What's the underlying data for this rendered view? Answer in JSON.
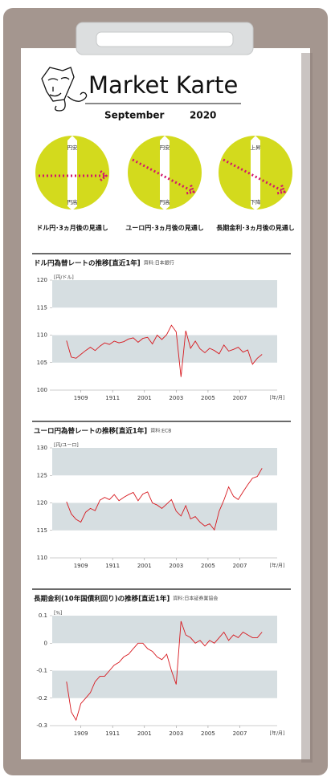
{
  "header": {
    "title": "Market Karte",
    "month": "September",
    "year": "2020"
  },
  "indicators": [
    {
      "top": "円安",
      "bottom": "円高",
      "caption": "ドル円･3ヵ月後の見通し",
      "trend": "flat"
    },
    {
      "top": "円安",
      "bottom": "円高",
      "caption": "ユーロ円･3ヵ月後の見通し",
      "trend": "down"
    },
    {
      "top": "上昇",
      "bottom": "下降",
      "caption": "長期金利･3ヵ月後の見通し",
      "trend": "down"
    }
  ],
  "chart_data": [
    {
      "type": "line",
      "title": "ドル円為替レートの推移[直近1年]",
      "source": "資料:日本銀行",
      "unit": "[円/ドル]",
      "xlabel": "[年/月]",
      "x": [
        -0.9,
        -0.6,
        -0.3,
        0,
        0.3,
        0.6,
        0.9,
        1.2,
        1.5,
        1.8,
        2.1,
        2.4,
        2.7,
        3.0,
        3.3,
        3.6,
        3.9,
        4.2,
        4.5,
        4.8,
        5.1,
        5.4,
        5.7,
        6.0,
        6.3,
        6.6,
        6.9,
        7.2,
        7.5,
        7.8,
        8.1,
        8.4,
        8.7,
        9.0,
        9.3,
        9.6,
        9.9,
        10.2,
        10.5,
        10.8,
        11.1,
        11.4
      ],
      "series": [
        {
          "color": "#d7191f",
          "values": [
            109.0,
            106.0,
            105.8,
            106.5,
            107.2,
            107.8,
            107.2,
            108.0,
            108.6,
            108.3,
            108.9,
            108.6,
            108.8,
            109.3,
            109.5,
            108.7,
            109.4,
            109.6,
            108.4,
            110.0,
            109.2,
            110.1,
            111.8,
            110.6,
            102.4,
            110.8,
            107.6,
            108.9,
            107.5,
            106.8,
            107.6,
            107.2,
            106.6,
            108.2,
            107.1,
            107.4,
            107.8,
            106.9,
            107.3,
            104.7,
            105.8,
            106.5
          ]
        }
      ],
      "xlim": [
        -1.8,
        12.35
      ],
      "xticks": [
        {
          "value": 0,
          "label": "1909"
        },
        {
          "value": 2,
          "label": "1911"
        },
        {
          "value": 4,
          "label": "2001"
        },
        {
          "value": 6,
          "label": "2003"
        },
        {
          "value": 8,
          "label": "2005"
        },
        {
          "value": 10,
          "label": "2007"
        }
      ],
      "ylim": [
        100,
        120
      ],
      "yticks": [
        100,
        105,
        110,
        115,
        120
      ],
      "band_color": "#d6dee1"
    },
    {
      "type": "line",
      "title": "ユーロ円為替レートの推移[直近1年]",
      "source": "資料:ECB",
      "unit": "[円/ユーロ]",
      "xlabel": "[年/月]",
      "x": [
        -0.9,
        -0.6,
        -0.3,
        0,
        0.3,
        0.6,
        0.9,
        1.2,
        1.5,
        1.8,
        2.1,
        2.4,
        2.7,
        3.0,
        3.3,
        3.6,
        3.9,
        4.2,
        4.5,
        4.8,
        5.1,
        5.4,
        5.7,
        6.0,
        6.3,
        6.6,
        6.9,
        7.2,
        7.5,
        7.8,
        8.1,
        8.4,
        8.7,
        9.0,
        9.3,
        9.6,
        9.9,
        10.2,
        10.5,
        10.8,
        11.1,
        11.4
      ],
      "series": [
        {
          "color": "#d7191f",
          "values": [
            120.2,
            118.0,
            117.0,
            116.5,
            118.3,
            119.0,
            118.6,
            120.5,
            121.0,
            120.6,
            121.5,
            120.4,
            121.0,
            121.5,
            121.9,
            120.4,
            121.6,
            122.0,
            120.0,
            119.6,
            119.0,
            119.8,
            120.6,
            118.5,
            117.6,
            119.5,
            117.1,
            117.5,
            116.5,
            115.8,
            116.2,
            115.1,
            118.5,
            120.5,
            122.9,
            121.2,
            120.6,
            122.0,
            123.3,
            124.5,
            124.8,
            126.3
          ]
        }
      ],
      "xlim": [
        -1.8,
        12.35
      ],
      "xticks": [
        {
          "value": 0,
          "label": "1909"
        },
        {
          "value": 2,
          "label": "1911"
        },
        {
          "value": 4,
          "label": "2001"
        },
        {
          "value": 6,
          "label": "2003"
        },
        {
          "value": 8,
          "label": "2005"
        },
        {
          "value": 10,
          "label": "2007"
        }
      ],
      "ylim": [
        110,
        130
      ],
      "yticks": [
        110,
        115,
        120,
        125,
        130
      ],
      "band_color": "#d6dee1"
    },
    {
      "type": "line",
      "title": "長期金利(10年国債利回り)の推移[直近1年]",
      "source": "資料:日本証券業協会",
      "unit": "[%]",
      "xlabel": "[年/月]",
      "x": [
        -0.9,
        -0.6,
        -0.3,
        0,
        0.3,
        0.6,
        0.9,
        1.2,
        1.5,
        1.8,
        2.1,
        2.4,
        2.7,
        3.0,
        3.3,
        3.6,
        3.9,
        4.2,
        4.5,
        4.8,
        5.1,
        5.4,
        5.7,
        6.0,
        6.3,
        6.6,
        6.9,
        7.2,
        7.5,
        7.8,
        8.1,
        8.4,
        8.7,
        9.0,
        9.3,
        9.6,
        9.9,
        10.2,
        10.5,
        10.8,
        11.1,
        11.4
      ],
      "series": [
        {
          "color": "#d7191f",
          "values": [
            -0.14,
            -0.25,
            -0.28,
            -0.22,
            -0.2,
            -0.18,
            -0.14,
            -0.12,
            -0.12,
            -0.1,
            -0.08,
            -0.07,
            -0.05,
            -0.04,
            -0.02,
            0.0,
            0.0,
            -0.02,
            -0.03,
            -0.05,
            -0.06,
            -0.04,
            -0.1,
            -0.15,
            0.08,
            0.03,
            0.02,
            0.0,
            0.01,
            -0.01,
            0.01,
            0.0,
            0.02,
            0.04,
            0.01,
            0.03,
            0.02,
            0.04,
            0.03,
            0.02,
            0.02,
            0.04
          ]
        }
      ],
      "xlim": [
        -1.8,
        12.35
      ],
      "xticks": [
        {
          "value": 0,
          "label": "1909"
        },
        {
          "value": 2,
          "label": "1911"
        },
        {
          "value": 4,
          "label": "2001"
        },
        {
          "value": 6,
          "label": "2003"
        },
        {
          "value": 8,
          "label": "2005"
        },
        {
          "value": 10,
          "label": "2007"
        }
      ],
      "ylim": [
        -0.3,
        0.1
      ],
      "yticks": [
        -0.3,
        -0.2,
        -0.1,
        0,
        0.1
      ],
      "band_color": "#d6dee1"
    }
  ]
}
